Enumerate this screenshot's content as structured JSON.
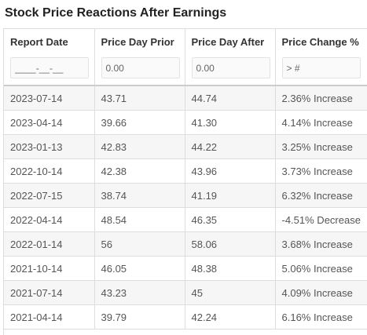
{
  "title": "Stock Price Reactions After Earnings",
  "columns": [
    {
      "label": "Report Date",
      "filter_placeholder": "____-__-__"
    },
    {
      "label": "Price Day Prior",
      "filter_placeholder": "0.00"
    },
    {
      "label": "Price Day After",
      "filter_placeholder": "0.00"
    },
    {
      "label": "Price Change %",
      "filter_placeholder": "> #"
    }
  ],
  "rows": [
    {
      "date": "2023-07-14",
      "prior": "43.71",
      "after": "44.74",
      "change": "2.36% Increase",
      "direction": "up"
    },
    {
      "date": "2023-04-14",
      "prior": "39.66",
      "after": "41.30",
      "change": "4.14% Increase",
      "direction": "up"
    },
    {
      "date": "2023-01-13",
      "prior": "42.83",
      "after": "44.22",
      "change": "3.25% Increase",
      "direction": "up"
    },
    {
      "date": "2022-10-14",
      "prior": "42.38",
      "after": "43.96",
      "change": "3.73% Increase",
      "direction": "up"
    },
    {
      "date": "2022-07-15",
      "prior": "38.74",
      "after": "41.19",
      "change": "6.32% Increase",
      "direction": "up"
    },
    {
      "date": "2022-04-14",
      "prior": "48.54",
      "after": "46.35",
      "change": "-4.51% Decrease",
      "direction": "down"
    },
    {
      "date": "2022-01-14",
      "prior": "56",
      "after": "58.06",
      "change": "3.68% Increase",
      "direction": "up"
    },
    {
      "date": "2021-10-14",
      "prior": "46.05",
      "after": "48.38",
      "change": "5.06% Increase",
      "direction": "up"
    },
    {
      "date": "2021-07-14",
      "prior": "43.23",
      "after": "45",
      "change": "4.09% Increase",
      "direction": "up"
    },
    {
      "date": "2021-04-14",
      "prior": "39.79",
      "after": "42.24",
      "change": "6.16% Increase",
      "direction": "up"
    }
  ],
  "colors": {
    "increase": "#3c8a2e",
    "decrease": "#cc2222",
    "stripe": "#f6f6f6",
    "border": "#dddddd"
  }
}
